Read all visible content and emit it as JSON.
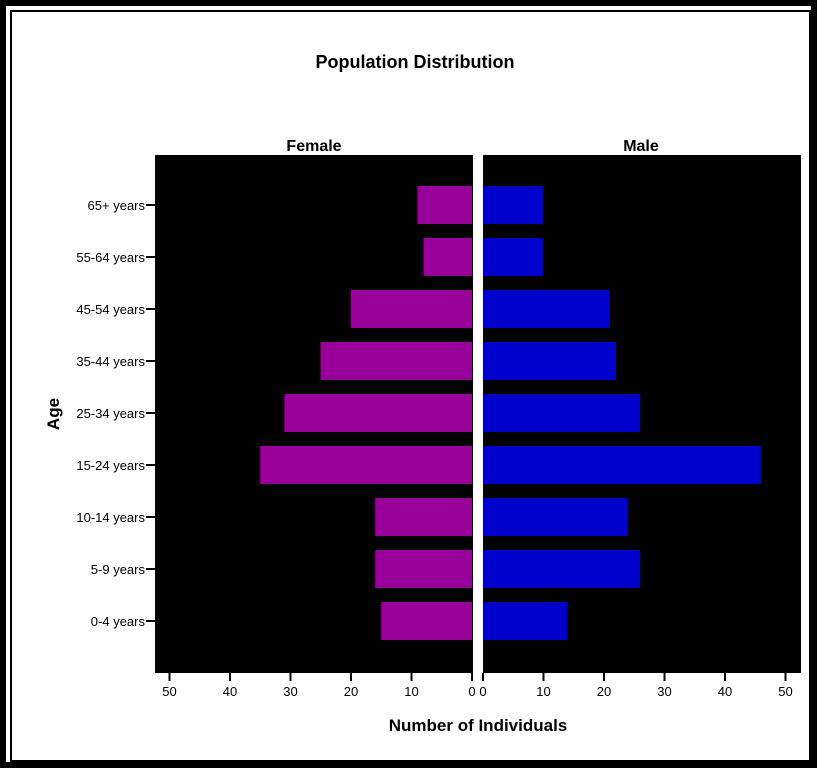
{
  "chart_data": {
    "type": "bar",
    "orientation": "horizontal",
    "layout": "population-pyramid",
    "title": "Population Distribution",
    "xlabel": "Number of Individuals",
    "ylabel": "Age",
    "categories": [
      "65+ years",
      "55-64 years",
      "45-54 years",
      "35-44 years",
      "25-34 years",
      "15-24 years",
      "10-14 years",
      "5-9 years",
      "0-4 years"
    ],
    "xlim": [
      0,
      52
    ],
    "xticks": [
      0,
      10,
      20,
      30,
      40,
      50
    ],
    "grid": false,
    "plot_background": "#000000",
    "series": [
      {
        "name": "Female",
        "color": "#990099",
        "values": [
          9,
          8,
          20,
          25,
          31,
          35,
          16,
          16,
          15
        ]
      },
      {
        "name": "Male",
        "color": "#0000cc",
        "values": [
          10,
          10,
          21,
          22,
          26,
          46,
          24,
          26,
          14
        ]
      }
    ]
  }
}
